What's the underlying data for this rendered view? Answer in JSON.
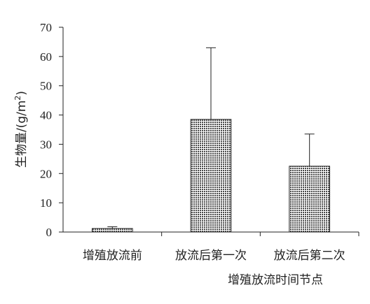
{
  "chart_data": {
    "type": "bar",
    "categories": [
      "增殖放流前",
      "放流后第一次",
      "放流后第二次"
    ],
    "values": [
      1.2,
      38.5,
      22.5
    ],
    "error_upper": [
      1.8,
      63.0,
      33.5
    ],
    "xlabel": "增殖放流时间节点",
    "ylabel_main": "生物量/(g/m",
    "ylabel_sup": "2",
    "ylabel_close": ")",
    "ylim": [
      0,
      70
    ],
    "yticks": [
      "0",
      "10",
      "20",
      "30",
      "40",
      "50",
      "60",
      "70"
    ],
    "grid": false,
    "legend": "none",
    "bar_color": "#7a7a7a"
  }
}
